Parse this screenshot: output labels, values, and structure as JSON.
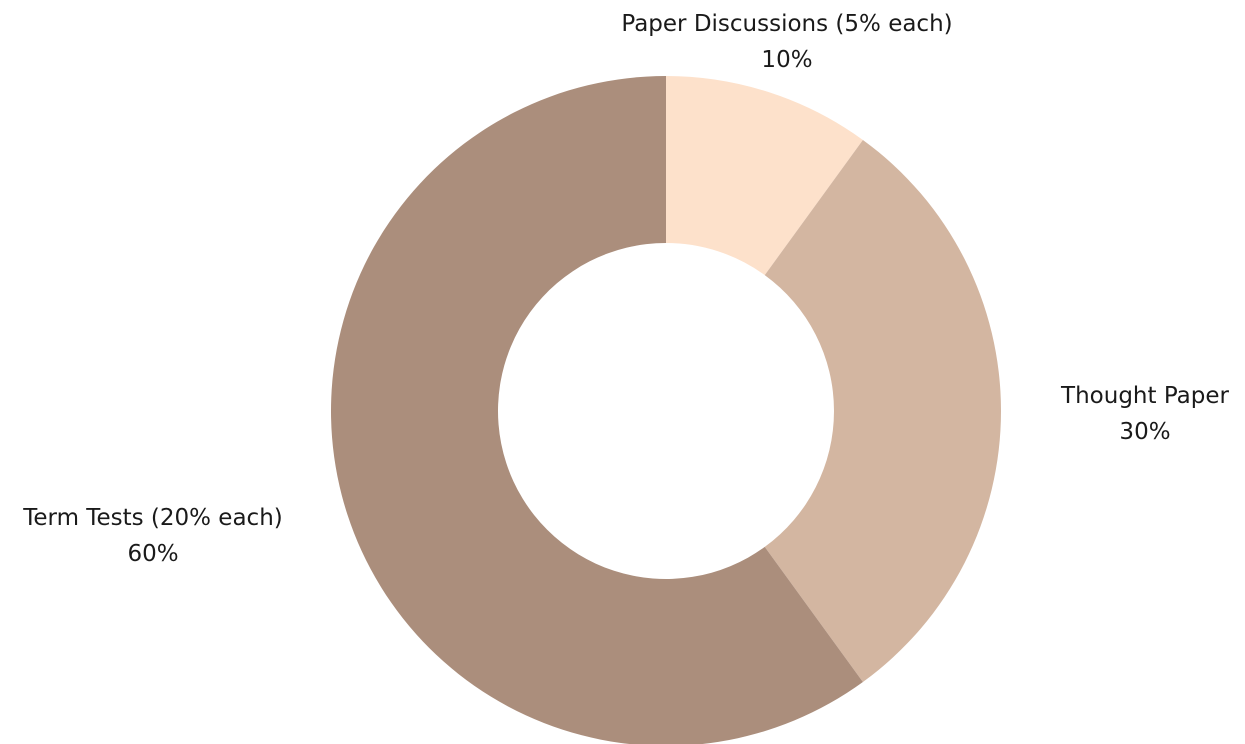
{
  "chart_data": {
    "type": "pie",
    "title": "",
    "slices": [
      {
        "label": "Paper Discussions (5% each)",
        "value": 10,
        "value_label": "10%",
        "color": "#FDE1CB"
      },
      {
        "label": "Thought Paper",
        "value": 30,
        "value_label": "30%",
        "color": "#D3B6A1"
      },
      {
        "label": "Term Tests (20% each)",
        "value": 60,
        "value_label": "60%",
        "color": "#AB8E7C"
      }
    ]
  }
}
